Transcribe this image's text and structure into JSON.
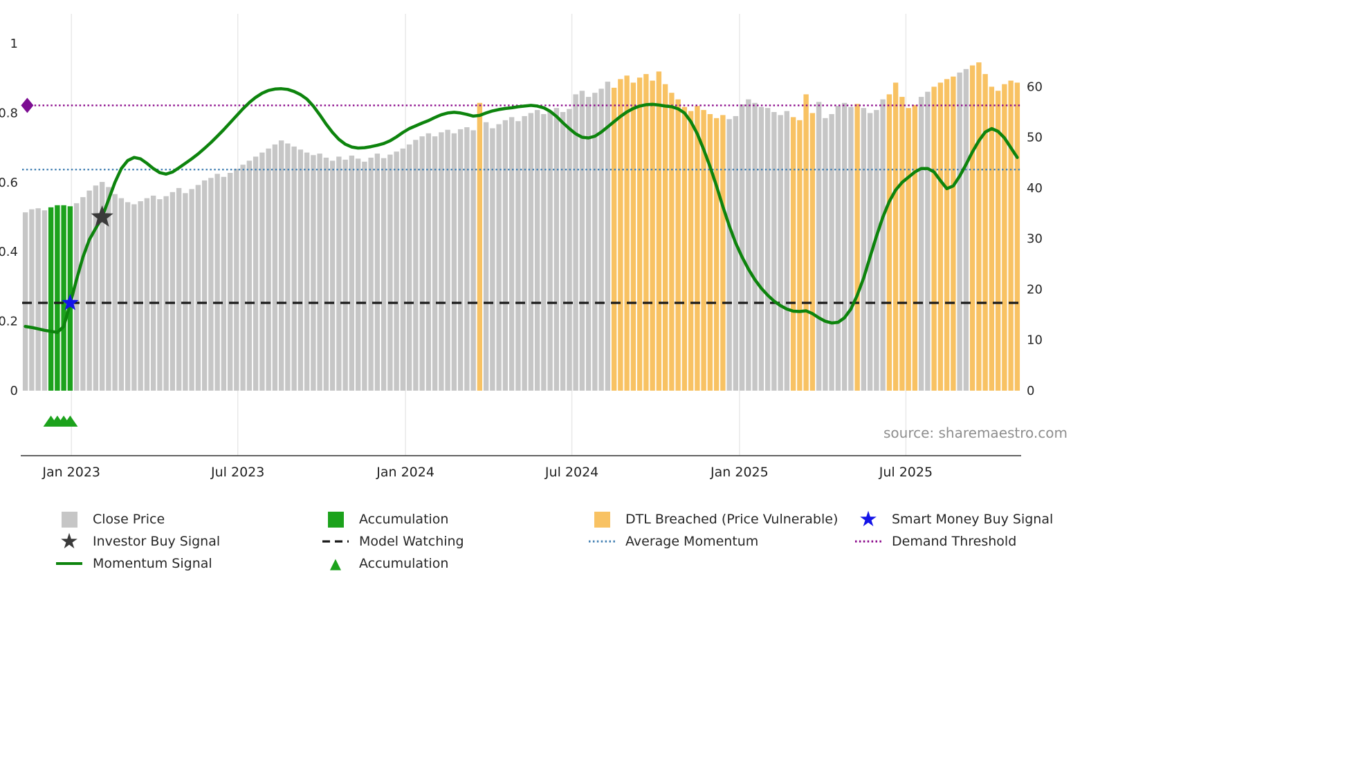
{
  "source": "source: sharemaestro.com",
  "icons": {
    "star": "★",
    "triangle": "▲"
  },
  "colors": {
    "bar_close": "#c6c6c6",
    "bar_accumulation": "#1ca21c",
    "bar_dtl_breached": "#f8c263",
    "momentum_line": "#0d840d",
    "model_watching": "#1a1a1a",
    "average_momentum": "#4682b4",
    "demand_threshold": "#8b0a8b",
    "smart_money_buy": "#1414e8",
    "investor_buy": "#3a3a3a",
    "demand_threshold_marker": "#7c0d92"
  },
  "legend": {
    "items": [
      {
        "label": "Close Price",
        "swatch": "square"
      },
      {
        "label": "Accumulation",
        "swatch": "square"
      },
      {
        "label": "DTL Breached (Price Vulnerable)",
        "swatch": "square"
      },
      {
        "label": "Smart Money Buy Signal",
        "swatch": "star"
      },
      {
        "label": "Investor Buy Signal",
        "swatch": "star"
      },
      {
        "label": "Model Watching",
        "swatch": "dashed-line"
      },
      {
        "label": "Average Momentum",
        "swatch": "dotted-line"
      },
      {
        "label": "Demand Threshold",
        "swatch": "dotted-line"
      },
      {
        "label": "Momentum Signal",
        "swatch": "solid-line"
      },
      {
        "label": "Accumulation",
        "swatch": "triangle"
      }
    ]
  },
  "chart_data": {
    "type": "bar+line",
    "x_ticks": [
      {
        "label": "Jan 2023",
        "week": 7.7
      },
      {
        "label": "Jul 2023",
        "week": 33.7
      },
      {
        "label": "Jan 2024",
        "week": 59.9
      },
      {
        "label": "Jul 2024",
        "week": 85.9
      },
      {
        "label": "Jan 2025",
        "week": 112.1
      },
      {
        "label": "Jul 2025",
        "week": 138.1
      }
    ],
    "left_axis": {
      "range": [
        0,
        1.08
      ],
      "ticks": [
        {
          "label": "1",
          "value": 1
        },
        {
          "label": "0.8",
          "value": 0.8
        },
        {
          "label": "0.6",
          "value": 0.6
        },
        {
          "label": "0.4",
          "value": 0.4
        },
        {
          "label": "0.2",
          "value": 0.2
        },
        {
          "label": "0",
          "value": 0
        }
      ]
    },
    "right_axis": {
      "range": [
        0,
        73
      ],
      "ticks": [
        {
          "label": "60",
          "value": 60
        },
        {
          "label": "50",
          "value": 50
        },
        {
          "label": "40",
          "value": 40
        },
        {
          "label": "30",
          "value": 30
        },
        {
          "label": "20",
          "value": 20
        },
        {
          "label": "10",
          "value": 10
        },
        {
          "label": "0",
          "value": 0
        }
      ]
    },
    "bars": {
      "name": "Close Price (weekly, right axis)",
      "state_key": {
        "c": "Close Price",
        "a": "Accumulation",
        "d": "DTL Breached (Price Vulnerable)"
      },
      "prices": [
        35.2,
        35.8,
        36.0,
        35.6,
        36.2,
        36.6,
        36.6,
        36.4,
        37.0,
        38.2,
        39.5,
        40.5,
        41.2,
        40.2,
        38.8,
        38.0,
        37.2,
        36.8,
        37.4,
        38.0,
        38.5,
        37.8,
        38.4,
        39.2,
        40.0,
        39.0,
        39.8,
        40.6,
        41.5,
        42.0,
        42.8,
        42.2,
        43.0,
        43.8,
        44.6,
        45.4,
        46.2,
        47.0,
        47.8,
        48.6,
        49.4,
        48.8,
        48.2,
        47.6,
        47.0,
        46.5,
        46.8,
        46.0,
        45.4,
        46.2,
        45.6,
        46.4,
        45.8,
        45.2,
        46.0,
        46.8,
        45.9,
        46.6,
        47.2,
        47.8,
        48.6,
        49.5,
        50.2,
        50.8,
        50.2,
        51.0,
        51.5,
        50.8,
        51.6,
        52.0,
        51.4,
        56.8,
        53.0,
        51.8,
        52.6,
        53.4,
        54.0,
        53.2,
        54.2,
        54.8,
        55.4,
        54.6,
        55.2,
        55.8,
        55.0,
        55.6,
        58.5,
        59.2,
        58.0,
        58.8,
        59.6,
        61.0,
        59.8,
        61.5,
        62.2,
        60.8,
        61.8,
        62.5,
        61.2,
        63.0,
        60.5,
        58.8,
        57.5,
        56.0,
        55.2,
        56.2,
        55.4,
        54.6,
        53.8,
        54.4,
        53.6,
        54.2,
        56.5,
        57.5,
        56.8,
        56.0,
        55.8,
        55.0,
        54.4,
        55.2,
        54.0,
        53.4,
        58.5,
        54.8,
        57.0,
        53.8,
        54.6,
        56.2,
        56.8,
        56.0,
        56.6,
        55.8,
        54.8,
        55.4,
        57.5,
        58.5,
        60.8,
        58.0,
        55.8,
        56.4,
        58.0,
        59.0,
        60.0,
        60.8,
        61.5,
        62.0,
        62.8,
        63.5,
        64.2,
        64.8,
        62.5,
        60.0,
        59.2,
        60.5,
        61.2,
        60.8
      ],
      "states": "ccccaaaacccccccccccccccccccccccccccccccccccccccccccccccccccccccccccccccdccccccccccccccccccccddddddddddddddddddccccccccccddddccccccdccccdddddccddddccdddddddddddddddd"
    },
    "momentum": {
      "name": "Momentum Signal (left axis)",
      "values": [
        0.185,
        0.182,
        0.178,
        0.174,
        0.171,
        0.168,
        0.185,
        0.25,
        0.32,
        0.385,
        0.435,
        0.468,
        0.5,
        0.55,
        0.6,
        0.64,
        0.663,
        0.672,
        0.668,
        0.655,
        0.64,
        0.628,
        0.624,
        0.63,
        0.642,
        0.655,
        0.668,
        0.682,
        0.698,
        0.715,
        0.733,
        0.752,
        0.772,
        0.792,
        0.812,
        0.83,
        0.845,
        0.857,
        0.865,
        0.869,
        0.87,
        0.868,
        0.862,
        0.853,
        0.84,
        0.82,
        0.795,
        0.768,
        0.744,
        0.724,
        0.71,
        0.702,
        0.699,
        0.7,
        0.703,
        0.707,
        0.712,
        0.72,
        0.731,
        0.744,
        0.755,
        0.763,
        0.771,
        0.778,
        0.787,
        0.795,
        0.8,
        0.802,
        0.8,
        0.796,
        0.791,
        0.793,
        0.8,
        0.806,
        0.81,
        0.813,
        0.815,
        0.818,
        0.82,
        0.822,
        0.82,
        0.815,
        0.805,
        0.79,
        0.772,
        0.755,
        0.74,
        0.73,
        0.728,
        0.733,
        0.745,
        0.76,
        0.775,
        0.79,
        0.803,
        0.813,
        0.82,
        0.824,
        0.825,
        0.823,
        0.82,
        0.818,
        0.812,
        0.8,
        0.775,
        0.74,
        0.695,
        0.645,
        0.59,
        0.53,
        0.475,
        0.425,
        0.385,
        0.35,
        0.32,
        0.295,
        0.275,
        0.258,
        0.245,
        0.235,
        0.229,
        0.228,
        0.23,
        0.222,
        0.21,
        0.2,
        0.195,
        0.197,
        0.21,
        0.235,
        0.275,
        0.325,
        0.385,
        0.445,
        0.5,
        0.545,
        0.578,
        0.6,
        0.615,
        0.63,
        0.64,
        0.64,
        0.63,
        0.605,
        0.582,
        0.59,
        0.618,
        0.652,
        0.688,
        0.72,
        0.745,
        0.755,
        0.747,
        0.728,
        0.7,
        0.672
      ]
    },
    "thresholds": [
      {
        "name": "Demand Threshold",
        "value": 0.822,
        "style": "dotted",
        "color": "#8b0a8b"
      },
      {
        "name": "Average Momentum",
        "value": 0.637,
        "style": "dotted",
        "color": "#4682b4"
      },
      {
        "name": "Model Watching",
        "value": 0.253,
        "style": "dashed",
        "color": "#1a1a1a"
      }
    ],
    "markers": [
      {
        "name": "Demand Threshold",
        "shape": "diamond",
        "week": 0.3,
        "value": 0.822,
        "color": "#7c0d92"
      },
      {
        "name": "Smart Money Buy Signal",
        "shape": "star",
        "week": 7,
        "value": 0.253,
        "size": 13,
        "color": "#1414e8"
      },
      {
        "name": "Investor Buy Signal",
        "shape": "star",
        "week": 12,
        "value": 0.5,
        "size": 17,
        "color": "#3a3a3a"
      },
      {
        "name": "Accumulation",
        "shape": "triangle-up",
        "weeks": [
          4,
          5,
          6,
          7
        ],
        "color": "#1ca21c"
      }
    ]
  }
}
